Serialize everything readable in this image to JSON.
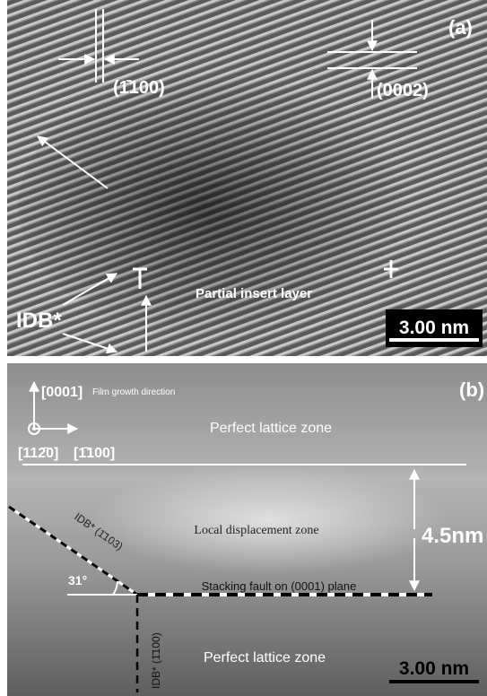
{
  "panel_a": {
    "label": "(a)",
    "plane_1": "(1̄100)",
    "plane_2": "(0002)",
    "defect": "IDB*",
    "region": "Partial insert layer",
    "scale_bar": "3.00 nm"
  },
  "panel_b": {
    "label": "(b)",
    "direction_1": "[0001]",
    "direction_1_note": "Film growth direction",
    "direction_2": "[112̄0]",
    "direction_3": "[1̄100]",
    "zone_top": "Perfect lattice zone",
    "zone_middle": "Local displacement zone",
    "thickness": "4.5nm",
    "boundary_1": "IDB* (1̄103)",
    "angle": "31°",
    "fault": "Stacking fault on (0001) plane",
    "boundary_2": "IDB* (1̄100)",
    "zone_bottom": "Perfect lattice zone",
    "scale_bar": "3.00 nm"
  }
}
